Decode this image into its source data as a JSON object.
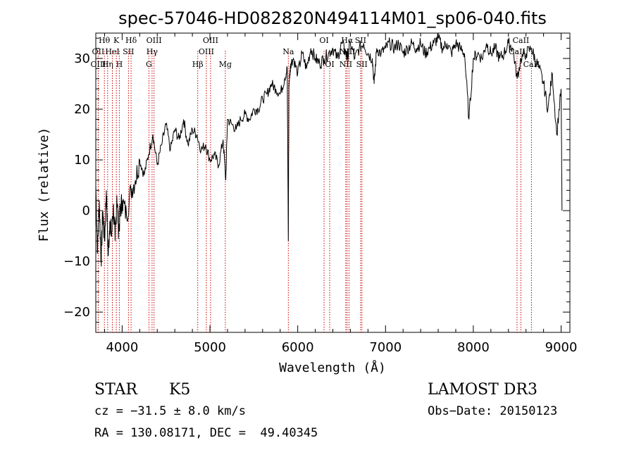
{
  "colors": {
    "axis": "#000000",
    "spectrum": "#000000",
    "line_marker": "#cc0000",
    "background": "#ffffff"
  },
  "chart_data": {
    "type": "line",
    "title": "spec-57046-HD082820N494114M01_sp06-040.fits",
    "xlabel": "Wavelength (Å)",
    "ylabel": "Flux (relative)",
    "xlim": [
      3700,
      9100
    ],
    "ylim": [
      -24,
      35
    ],
    "grid": false,
    "xticks": [
      4000,
      5000,
      6000,
      7000,
      8000,
      9000
    ],
    "xtick_labels": [
      "4000",
      "5000",
      "6000",
      "7000",
      "8000",
      "9000"
    ],
    "yticks": [
      -20,
      -10,
      0,
      10,
      20,
      30
    ],
    "ytick_labels": [
      "−20",
      "−10",
      "0",
      "10",
      "20",
      "30"
    ],
    "series": [
      {
        "x": [
          3700,
          3720,
          3740,
          3760,
          3780,
          3800,
          3820,
          3840,
          3860,
          3880,
          3900,
          3920,
          3940,
          3960,
          3980,
          4000,
          4050,
          4100,
          4150,
          4200,
          4250,
          4300,
          4350,
          4400,
          4450,
          4500,
          4550,
          4600,
          4650,
          4700,
          4750,
          4800,
          4850,
          4900,
          4950,
          5000,
          5050,
          5100,
          5150,
          5180,
          5200,
          5250,
          5300,
          5350,
          5400,
          5450,
          5500,
          5550,
          5600,
          5650,
          5700,
          5750,
          5800,
          5850,
          5880,
          5893,
          5900,
          5910,
          5920,
          5950,
          6000,
          6050,
          6100,
          6150,
          6200,
          6250,
          6300,
          6350,
          6400,
          6450,
          6500,
          6550,
          6563,
          6600,
          6650,
          6700,
          6750,
          6800,
          6850,
          6870,
          6900,
          6950,
          7000,
          7050,
          7100,
          7150,
          7200,
          7250,
          7300,
          7350,
          7400,
          7450,
          7500,
          7550,
          7600,
          7650,
          7700,
          7750,
          7800,
          7850,
          7900,
          7950,
          8000,
          8050,
          8100,
          8150,
          8200,
          8250,
          8300,
          8350,
          8400,
          8450,
          8500,
          8542,
          8600,
          8662,
          8700,
          8750,
          8800,
          8850,
          8900,
          8950,
          9000,
          9010
        ],
        "y": [
          5,
          -8,
          2,
          -10,
          0,
          -6,
          4,
          -9,
          -2,
          -5,
          1,
          -6,
          3,
          -4,
          0,
          2,
          -1,
          4,
          6,
          10,
          7,
          11,
          15,
          9,
          13,
          17,
          12,
          16,
          14,
          18,
          13,
          16,
          15,
          12,
          13,
          10,
          11,
          9,
          14,
          6,
          18,
          17,
          16,
          18,
          19,
          18,
          20,
          20,
          22,
          23,
          25,
          24,
          23,
          26,
          28,
          -6,
          25,
          27,
          29,
          30,
          27,
          31,
          28,
          32,
          30,
          29,
          30,
          31,
          32,
          30,
          33,
          31,
          30,
          33,
          30,
          32,
          33,
          31,
          30,
          25,
          32,
          31,
          32,
          33,
          32,
          33,
          31,
          32,
          33,
          32,
          33,
          31,
          32,
          33,
          34,
          32,
          33,
          31,
          33,
          32,
          31,
          18,
          30,
          31,
          30,
          33,
          31,
          32,
          30,
          31,
          33,
          32,
          26,
          30,
          31,
          32,
          30,
          28,
          25,
          20,
          27,
          15,
          24,
          0
        ]
      }
    ],
    "line_labels": [
      {
        "label": "Hθ",
        "x": 3798,
        "row": 1
      },
      {
        "label": "OII",
        "x": 3727,
        "row": 2
      },
      {
        "label": "OIII",
        "x": 3728,
        "row": 3
      },
      {
        "label": "K",
        "x": 3934,
        "row": 1
      },
      {
        "label": "HeI",
        "x": 3889,
        "row": 2
      },
      {
        "label": "Hη",
        "x": 3835,
        "row": 3
      },
      {
        "label": "H",
        "x": 3968,
        "row": 3
      },
      {
        "label": "Hδ",
        "x": 4102,
        "row": 1
      },
      {
        "label": "SII",
        "x": 4072,
        "row": 2
      },
      {
        "label": "OIII",
        "x": 4363,
        "row": 1
      },
      {
        "label": "Hγ",
        "x": 4341,
        "row": 2
      },
      {
        "label": "G",
        "x": 4305,
        "row": 3
      },
      {
        "label": "OIII",
        "x": 5007,
        "row": 1
      },
      {
        "label": "OIII",
        "x": 4959,
        "row": 2
      },
      {
        "label": "Hβ",
        "x": 4861,
        "row": 3
      },
      {
        "label": "Mg",
        "x": 5175,
        "row": 3
      },
      {
        "label": "Na",
        "x": 5893,
        "row": 2
      },
      {
        "label": "OI",
        "x": 6300,
        "row": 1
      },
      {
        "label": "OI",
        "x": 6364,
        "row": 3
      },
      {
        "label": "Hα",
        "x": 6563,
        "row": 1
      },
      {
        "label": "SII",
        "x": 6716,
        "row": 1
      },
      {
        "label": "NII",
        "x": 6548,
        "row": 2
      },
      {
        "label": "NII",
        "x": 6584,
        "row": 2
      },
      {
        "label": "NII",
        "x": 6548,
        "row": 3
      },
      {
        "label": "SII",
        "x": 6731,
        "row": 3
      },
      {
        "label": "CaII",
        "x": 8542,
        "row": 1
      },
      {
        "label": "CaII",
        "x": 8498,
        "row": 2
      },
      {
        "label": "CaII",
        "x": 8662,
        "row": 3
      }
    ]
  },
  "info": {
    "object_class": "STAR",
    "subclass": "K5",
    "survey": "LAMOST DR3",
    "cz": "cz = −31.5 ± 8.0 km/s",
    "obs_date": "Obs−Date: 20150123",
    "coords": "RA = 130.08171, DEC =  49.40345"
  }
}
